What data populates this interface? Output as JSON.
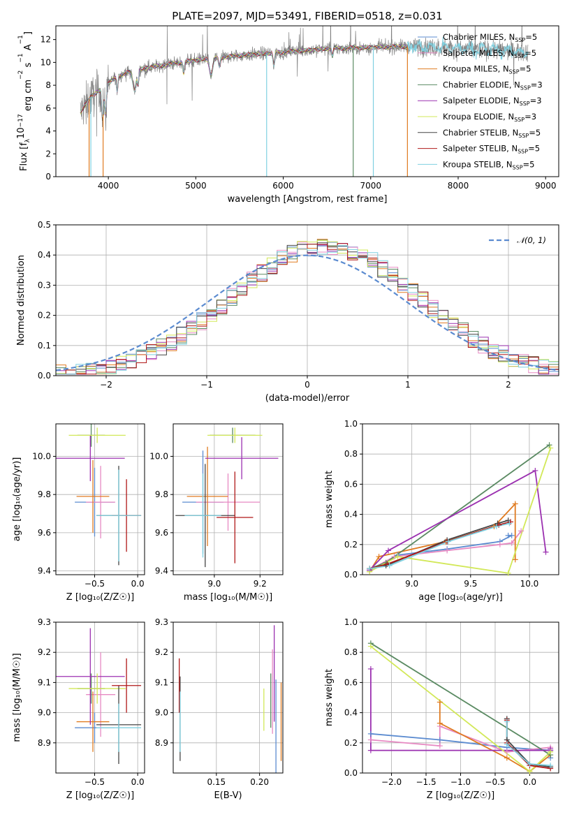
{
  "figure": {
    "title": "PLATE=2097, MJD=53491, FIBERID=0518, z=0.031"
  },
  "models": [
    {
      "name": "Chabrier MILES, N",
      "sub": "SSP",
      "suffix": "=5",
      "color": "#5b8bd0"
    },
    {
      "name": "Salpeter MILES, N",
      "sub": "SSP",
      "suffix": "=5",
      "color": "#e78ac3"
    },
    {
      "name": "Kroupa MILES, N",
      "sub": "SSP",
      "suffix": "=5",
      "color": "#e07b20"
    },
    {
      "name": "Chabrier ELODIE, N",
      "sub": "SSP",
      "suffix": "=3",
      "color": "#5a8a62"
    },
    {
      "name": "Salpeter ELODIE, N",
      "sub": "SSP",
      "suffix": "=3",
      "color": "#9b30b0"
    },
    {
      "name": "Kroupa ELODIE, N",
      "sub": "SSP",
      "suffix": "=3",
      "color": "#d2e858"
    },
    {
      "name": "Chabrier STELIB, N",
      "sub": "SSP",
      "suffix": "=5",
      "color": "#444444"
    },
    {
      "name": "Salpeter STELIB, N",
      "sub": "SSP",
      "suffix": "=5",
      "color": "#b01818"
    },
    {
      "name": "Kroupa STELIB, N",
      "sub": "SSP",
      "suffix": "=5",
      "color": "#7fd0e0"
    }
  ],
  "chart_data": [
    {
      "id": "spectrum",
      "type": "line",
      "xlabel": "wavelength [Angstrom, rest frame]",
      "ylabel": "Flux [f",
      "ylabel_parts": [
        "Flux [f",
        "λ",
        "10",
        "−17",
        " erg cm",
        "−2",
        " s",
        "−1",
        " A",
        "−1",
        "]"
      ],
      "xlim": [
        3400,
        9150
      ],
      "ylim": [
        0,
        13.2
      ],
      "xticks": [
        4000,
        5000,
        6000,
        7000,
        8000,
        9000
      ],
      "yticks": [
        0,
        2,
        4,
        6,
        8,
        10,
        12
      ],
      "data_color": "#808080",
      "observed_range": [
        3680,
        8800
      ],
      "model_range": [
        3680,
        7420
      ],
      "continuum_anchors": {
        "x": [
          3680,
          3800,
          3950,
          4100,
          4300,
          4500,
          5000,
          5500,
          6000,
          6500,
          7000,
          7400,
          7800,
          8400,
          8800
        ],
        "y": [
          5.6,
          7.0,
          7.8,
          8.8,
          9.3,
          9.6,
          10.2,
          10.6,
          10.9,
          11.2,
          11.3,
          11.4,
          11.3,
          11.1,
          10.9
        ]
      },
      "vertical_drops": [
        {
          "x": 3780,
          "color": "#e07b20"
        },
        {
          "x": 3800,
          "color": "#7fd0e0"
        },
        {
          "x": 3940,
          "color": "#e07b20"
        },
        {
          "x": 5810,
          "color": "#7fd0e0"
        },
        {
          "x": 6800,
          "color": "#5a8a62"
        },
        {
          "x": 7030,
          "color": "#7fd0e0"
        },
        {
          "x": 7420,
          "color": "#e07b20"
        }
      ]
    },
    {
      "id": "residuals",
      "type": "histogram",
      "xlabel": "(data-model)/error",
      "ylabel": "Normed distribution",
      "xlim": [
        -2.5,
        2.5
      ],
      "ylim": [
        0,
        0.5
      ],
      "xticks": [
        -2,
        -1,
        0,
        1,
        2
      ],
      "xtick_labels": [
        "−2",
        "−1",
        "0",
        "1",
        "2"
      ],
      "yticks": [
        0.0,
        0.1,
        0.2,
        0.3,
        0.4,
        0.5
      ],
      "bin_edges_start": -2.5,
      "bin_width": 0.1,
      "gaussian": {
        "label": "𝒩(0, 1)",
        "color": "#5b8bd0",
        "mean": 0,
        "sigma": 1
      }
    },
    {
      "id": "age_vs_Z",
      "type": "errorbar",
      "xlabel": "Z [log₁₀(Z/Z☉)]",
      "ylabel": "age  [log₁₀(age/yr)]",
      "xlim": [
        -0.95,
        0.08
      ],
      "ylim": [
        9.38,
        10.17
      ],
      "xticks": [
        -0.5,
        0.0
      ],
      "xtick_labels": [
        "−0.5",
        "0.0"
      ],
      "yticks": [
        9.4,
        9.6,
        9.8,
        10.0
      ],
      "points": [
        {
          "x": -0.5,
          "xerr": 0.23,
          "y": 9.76,
          "yerr": 0.18
        },
        {
          "x": -0.43,
          "xerr": 0.17,
          "y": 9.76,
          "yerr": 0.19
        },
        {
          "x": -0.52,
          "xerr": 0.19,
          "y": 9.79,
          "yerr": 0.19
        },
        {
          "x": -0.54,
          "xerr": 0.16,
          "y": 10.11,
          "yerr": 0.06
        },
        {
          "x": -0.55,
          "xerr": 0.4,
          "y": 9.99,
          "yerr": 0.12
        },
        {
          "x": -0.47,
          "xerr": 0.33,
          "y": 10.11,
          "yerr": 0.04
        },
        {
          "x": -0.22,
          "xerr": 0.26,
          "y": 9.69,
          "yerr": 0.26
        },
        {
          "x": -0.13,
          "xerr": 0.17,
          "y": 9.69,
          "yerr": 0.19
        },
        {
          "x": -0.22,
          "xerr": 0.26,
          "y": 9.69,
          "yerr": 0.24
        }
      ]
    },
    {
      "id": "age_vs_mass",
      "type": "errorbar",
      "xlabel": "mass [log₁₀(M/M☉)]",
      "ylabel": "",
      "xlim": [
        8.82,
        9.3
      ],
      "ylim": [
        9.38,
        10.17
      ],
      "xticks": [
        9.0,
        9.2
      ],
      "xtick_labels": [
        "9.0",
        "9.2"
      ],
      "yticks": [
        9.4,
        9.6,
        9.8,
        10.0
      ],
      "points": [
        {
          "x": 8.95,
          "xerr": 0.09,
          "y": 9.76,
          "yerr": 0.27
        },
        {
          "x": 9.06,
          "xerr": 0.14,
          "y": 9.76,
          "yerr": 0.15
        },
        {
          "x": 8.97,
          "xerr": 0.09,
          "y": 9.79,
          "yerr": 0.26
        },
        {
          "x": 9.08,
          "xerr": 0.1,
          "y": 10.11,
          "yerr": 0.04
        },
        {
          "x": 9.12,
          "xerr": 0.16,
          "y": 9.99,
          "yerr": 0.11
        },
        {
          "x": 9.09,
          "xerr": 0.12,
          "y": 10.11,
          "yerr": 0.04
        },
        {
          "x": 8.96,
          "xerr": 0.13,
          "y": 9.69,
          "yerr": 0.27
        },
        {
          "x": 9.09,
          "xerr": 0.08,
          "y": 9.68,
          "yerr": 0.24
        },
        {
          "x": 8.95,
          "xerr": 0.08,
          "y": 9.69,
          "yerr": 0.22
        }
      ]
    },
    {
      "id": "weight_vs_age",
      "type": "line",
      "xlabel": "age  [log₁₀(age/yr)]",
      "ylabel": "mass weight",
      "xlim": [
        8.58,
        10.25
      ],
      "ylim": [
        0,
        1.0
      ],
      "xticks": [
        9.0,
        9.5,
        10.0
      ],
      "xtick_labels": [
        "9.0",
        "9.5",
        "10.0"
      ],
      "yticks": [
        0.0,
        0.2,
        0.4,
        0.6,
        0.8,
        1.0
      ],
      "series": [
        {
          "x": [
            8.64,
            8.88,
            9.3,
            9.75,
            9.85,
            9.82
          ],
          "y": [
            0.03,
            0.13,
            0.17,
            0.22,
            0.26,
            0.26
          ]
        },
        {
          "x": [
            8.64,
            8.85,
            9.3,
            9.75,
            9.85,
            9.93
          ],
          "y": [
            0.03,
            0.12,
            0.16,
            0.2,
            0.21,
            0.29
          ]
        },
        {
          "x": [
            8.64,
            8.72,
            9.29,
            9.7,
            9.88,
            9.88
          ],
          "y": [
            0.02,
            0.12,
            0.22,
            0.32,
            0.47,
            0.1
          ]
        },
        {
          "x": [
            8.64,
            8.78,
            10.17
          ],
          "y": [
            0.04,
            0.08,
            0.86
          ]
        },
        {
          "x": [
            8.64,
            8.8,
            10.05,
            10.14
          ],
          "y": [
            0.03,
            0.16,
            0.69,
            0.15
          ]
        },
        {
          "x": [
            8.64,
            8.88,
            9.82,
            10.18
          ],
          "y": [
            0.02,
            0.12,
            0.01,
            0.84
          ]
        },
        {
          "x": [
            8.64,
            8.78,
            9.3,
            9.73,
            9.82
          ],
          "y": [
            0.04,
            0.06,
            0.23,
            0.34,
            0.36
          ]
        },
        {
          "x": [
            8.64,
            8.79,
            9.3,
            9.74,
            9.84
          ],
          "y": [
            0.04,
            0.07,
            0.22,
            0.33,
            0.35
          ]
        },
        {
          "x": [
            8.64,
            8.81,
            9.31,
            9.72,
            9.83
          ],
          "y": [
            0.04,
            0.06,
            0.22,
            0.32,
            0.34
          ]
        }
      ]
    },
    {
      "id": "mass_vs_Z",
      "type": "errorbar",
      "xlabel": "Z [log₁₀(Z/Z☉)]",
      "ylabel": "mass [log₁₀(M/M☉)]",
      "xlim": [
        -0.95,
        0.08
      ],
      "ylim": [
        8.8,
        9.3
      ],
      "xticks": [
        -0.5,
        0.0
      ],
      "xtick_labels": [
        "−0.5",
        "0.0"
      ],
      "yticks": [
        8.9,
        9.0,
        9.1,
        9.2,
        9.3
      ],
      "points": [
        {
          "x": -0.5,
          "xerr": 0.23,
          "y": 8.95,
          "yerr": 0.05
        },
        {
          "x": -0.43,
          "xerr": 0.17,
          "y": 9.06,
          "yerr": 0.14
        },
        {
          "x": -0.52,
          "xerr": 0.19,
          "y": 8.97,
          "yerr": 0.1
        },
        {
          "x": -0.54,
          "xerr": 0.16,
          "y": 9.08,
          "yerr": 0.05
        },
        {
          "x": -0.55,
          "xerr": 0.4,
          "y": 9.12,
          "yerr": 0.16
        },
        {
          "x": -0.47,
          "xerr": 0.33,
          "y": 9.08,
          "yerr": 0.05
        },
        {
          "x": -0.22,
          "xerr": 0.26,
          "y": 8.96,
          "yerr": 0.13
        },
        {
          "x": -0.13,
          "xerr": 0.17,
          "y": 9.09,
          "yerr": 0.09
        },
        {
          "x": -0.22,
          "xerr": 0.26,
          "y": 8.95,
          "yerr": 0.08
        }
      ]
    },
    {
      "id": "mass_vs_EBV",
      "type": "errorbar",
      "xlabel": "E(B-V)",
      "ylabel": "",
      "xlim": [
        0.1,
        0.227
      ],
      "ylim": [
        8.8,
        9.3
      ],
      "xticks": [
        0.15,
        0.2
      ],
      "xtick_labels": [
        "0.15",
        "0.20"
      ],
      "yticks": [
        8.9,
        9.0,
        9.1,
        9.2,
        9.3
      ],
      "points": [
        {
          "x": 0.219,
          "y": 8.95,
          "yerr": 0.16
        },
        {
          "x": 0.215,
          "y": 9.07,
          "yerr": 0.14
        },
        {
          "x": 0.225,
          "y": 8.97,
          "yerr": 0.13
        },
        {
          "x": 0.213,
          "y": 9.04,
          "yerr": 0.09
        },
        {
          "x": 0.217,
          "y": 9.13,
          "yerr": 0.16
        },
        {
          "x": 0.205,
          "y": 9.01,
          "yerr": 0.07
        },
        {
          "x": 0.108,
          "y": 8.98,
          "yerr": 0.14
        },
        {
          "x": 0.107,
          "y": 9.09,
          "yerr": 0.09
        },
        {
          "x": 0.108,
          "y": 8.97,
          "yerr": 0.1
        }
      ]
    },
    {
      "id": "weight_vs_Z",
      "type": "line",
      "xlabel": "Z [log₁₀(Z/Z☉)]",
      "ylabel": "mass weight",
      "xlim": [
        -2.42,
        0.42
      ],
      "ylim": [
        0,
        1.0
      ],
      "xticks": [
        -2.0,
        -1.5,
        -1.0,
        -0.5,
        0.0
      ],
      "xtick_labels": [
        "−2.0",
        "−1.5",
        "−1.0",
        "−0.5",
        "0.0"
      ],
      "yticks": [
        0.0,
        0.2,
        0.4,
        0.6,
        0.8,
        1.0
      ],
      "series": [
        {
          "x": [
            -2.3,
            -1.3,
            -0.33,
            0.3,
            0.3
          ],
          "y": [
            0.26,
            0.22,
            0.17,
            0.15,
            0.1
          ]
        },
        {
          "x": [
            -2.3,
            -1.3,
            -1.3,
            -0.33,
            0.3
          ],
          "y": [
            0.22,
            0.18,
            0.31,
            0.14,
            0.17
          ]
        },
        {
          "x": [
            -1.3,
            -1.3,
            -0.33,
            0.0,
            0.3
          ],
          "y": [
            0.47,
            0.33,
            0.1,
            0.01,
            0.12
          ]
        },
        {
          "x": [
            -2.3,
            0.3
          ],
          "y": [
            0.86,
            0.12
          ]
        },
        {
          "x": [
            -2.3,
            -2.3,
            0.3,
            0.3
          ],
          "y": [
            0.69,
            0.15,
            0.15,
            0.16
          ]
        },
        {
          "x": [
            -2.3,
            0.0,
            0.3
          ],
          "y": [
            0.84,
            0.01,
            0.14
          ]
        },
        {
          "x": [
            -0.33,
            -0.33,
            0.0,
            0.3
          ],
          "y": [
            0.36,
            0.22,
            0.06,
            0.04
          ]
        },
        {
          "x": [
            -0.33,
            -0.33,
            0.0,
            0.3
          ],
          "y": [
            0.35,
            0.2,
            0.05,
            0.03
          ]
        },
        {
          "x": [
            -0.33,
            -0.33,
            0.0,
            0.3
          ],
          "y": [
            0.34,
            0.19,
            0.06,
            0.05
          ]
        }
      ]
    }
  ]
}
